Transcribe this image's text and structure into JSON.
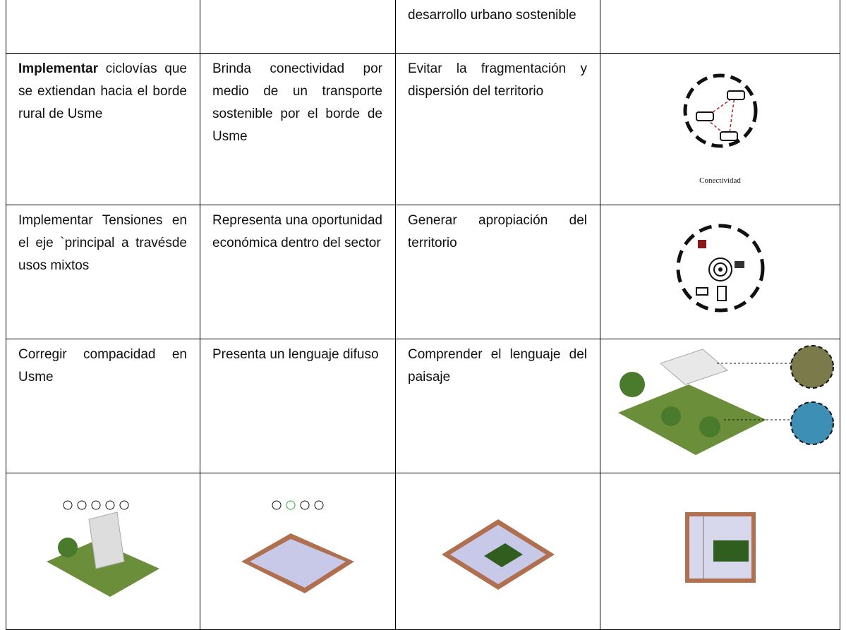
{
  "table": {
    "rows": [
      [
        null,
        null,
        {
          "text": "desarrollo urbano sostenible"
        },
        null
      ],
      [
        {
          "bold": "Implementar",
          "text": "ciclovías que se extiendan hacia el borde rural de Usme"
        },
        {
          "text": "Brinda conectividad por medio de un transporte sostenible por el borde de Usme"
        },
        {
          "text": "Evitar la fragmentación y dispersión del territorio"
        },
        {
          "caption": "Conectividad"
        }
      ],
      [
        {
          "text": "Implementar Tensiones en el eje `principal a travésde usos mixtos"
        },
        {
          "text": "Representa una oportunidad económica dentro del sector"
        },
        {
          "text": "Generar apropiación del territorio"
        },
        null
      ],
      [
        {
          "text": "Corregir compacidad en Usme"
        },
        {
          "text": "Presenta un lenguaje difuso"
        },
        {
          "text": "Comprender el lenguaje del paisaje"
        },
        null
      ],
      [
        null,
        null,
        null,
        null
      ]
    ]
  }
}
